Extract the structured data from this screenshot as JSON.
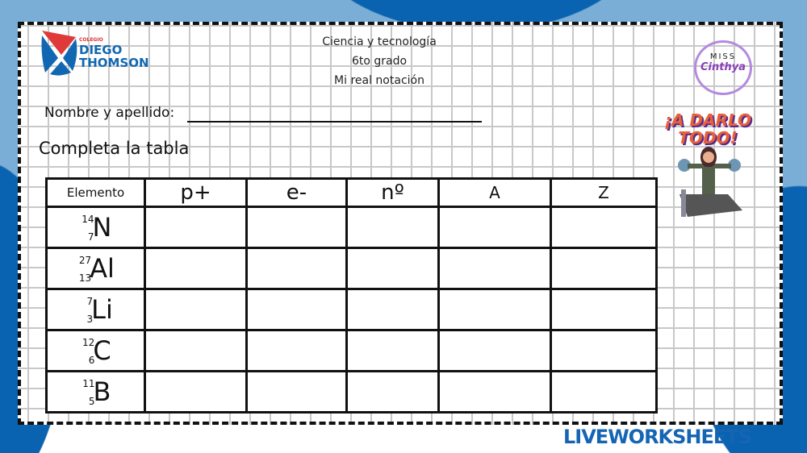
{
  "logo": {
    "small": "COLEGIO",
    "line1": "DIEGO",
    "line2": "THOMSON"
  },
  "header": {
    "subject": "Ciencia y tecnología",
    "grade": "6to grado",
    "topic": "Mi real notación"
  },
  "name_label": "Nombre y apellido:",
  "name_value": "",
  "task": "Completa la tabla",
  "table": {
    "headers": [
      "Elemento",
      "p+",
      "e-",
      "nº",
      "A",
      "Z"
    ],
    "rows": [
      {
        "mass": "14",
        "atomic": "7",
        "symbol": "N"
      },
      {
        "mass": "27",
        "atomic": "13",
        "symbol": "Al"
      },
      {
        "mass": "7",
        "atomic": "3",
        "symbol": "Li"
      },
      {
        "mass": "12",
        "atomic": "6",
        "symbol": "C"
      },
      {
        "mass": "11",
        "atomic": "5",
        "symbol": "B"
      }
    ]
  },
  "badge": {
    "line1": "MISS",
    "line2": "Cinthya"
  },
  "motto": "¡A DARLO TODO!",
  "watermark": "LIVEWORKSHEETS",
  "colors": {
    "bg_light": "#7aaed6",
    "bg_dark": "#0a63b0",
    "brand": "#1565b4"
  }
}
